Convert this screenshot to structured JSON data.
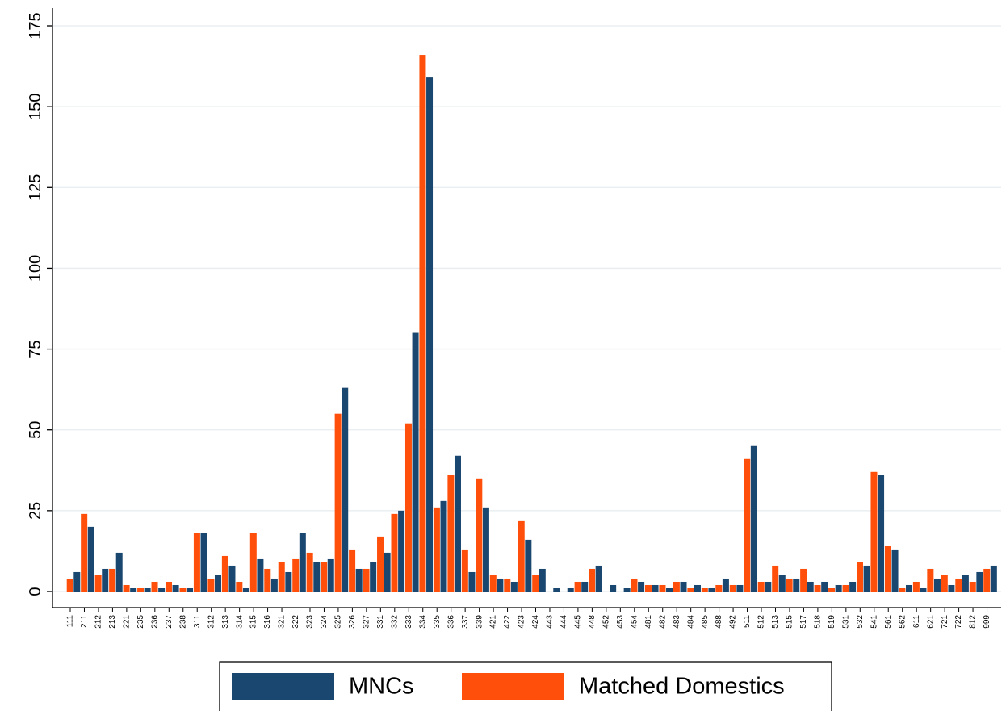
{
  "chart_data": {
    "type": "bar",
    "categories": [
      "111",
      "211",
      "212",
      "213",
      "221",
      "235",
      "236",
      "237",
      "238",
      "311",
      "312",
      "313",
      "314",
      "315",
      "316",
      "321",
      "322",
      "323",
      "324",
      "325",
      "326",
      "327",
      "331",
      "332",
      "333",
      "334",
      "335",
      "336",
      "337",
      "339",
      "421",
      "422",
      "423",
      "424",
      "443",
      "444",
      "445",
      "448",
      "452",
      "453",
      "454",
      "481",
      "482",
      "483",
      "484",
      "485",
      "488",
      "492",
      "511",
      "512",
      "513",
      "515",
      "517",
      "518",
      "519",
      "531",
      "532",
      "541",
      "561",
      "562",
      "611",
      "621",
      "721",
      "722",
      "812",
      "999"
    ],
    "series": [
      {
        "name": "MNCs",
        "color": "#1a476f",
        "values": [
          6,
          20,
          7,
          12,
          1,
          1,
          1,
          2,
          1,
          18,
          5,
          8,
          1,
          10,
          4,
          6,
          18,
          9,
          10,
          63,
          7,
          9,
          12,
          25,
          80,
          159,
          28,
          42,
          6,
          26,
          4,
          3,
          16,
          7,
          1,
          1,
          3,
          8,
          2,
          1,
          3,
          2,
          1,
          3,
          2,
          1,
          4,
          2,
          45,
          3,
          5,
          4,
          3,
          3,
          2,
          3,
          8,
          36,
          13,
          2,
          1,
          4,
          2,
          5,
          6,
          8
        ]
      },
      {
        "name": "Matched Domestics",
        "color": "#ff4f0a",
        "values": [
          4,
          24,
          5,
          7,
          2,
          1,
          3,
          3,
          1,
          18,
          4,
          11,
          3,
          18,
          7,
          9,
          10,
          12,
          9,
          55,
          13,
          7,
          17,
          24,
          52,
          166,
          26,
          36,
          13,
          35,
          5,
          4,
          22,
          5,
          0,
          0,
          3,
          7,
          0,
          0,
          4,
          2,
          2,
          3,
          1,
          1,
          2,
          2,
          41,
          3,
          8,
          4,
          7,
          2,
          1,
          2,
          9,
          37,
          14,
          1,
          3,
          7,
          5,
          4,
          3,
          7
        ]
      }
    ],
    "ylim": [
      0,
      175
    ],
    "yticks": [
      0,
      25,
      50,
      75,
      100,
      125,
      150,
      175
    ],
    "grid": true
  }
}
